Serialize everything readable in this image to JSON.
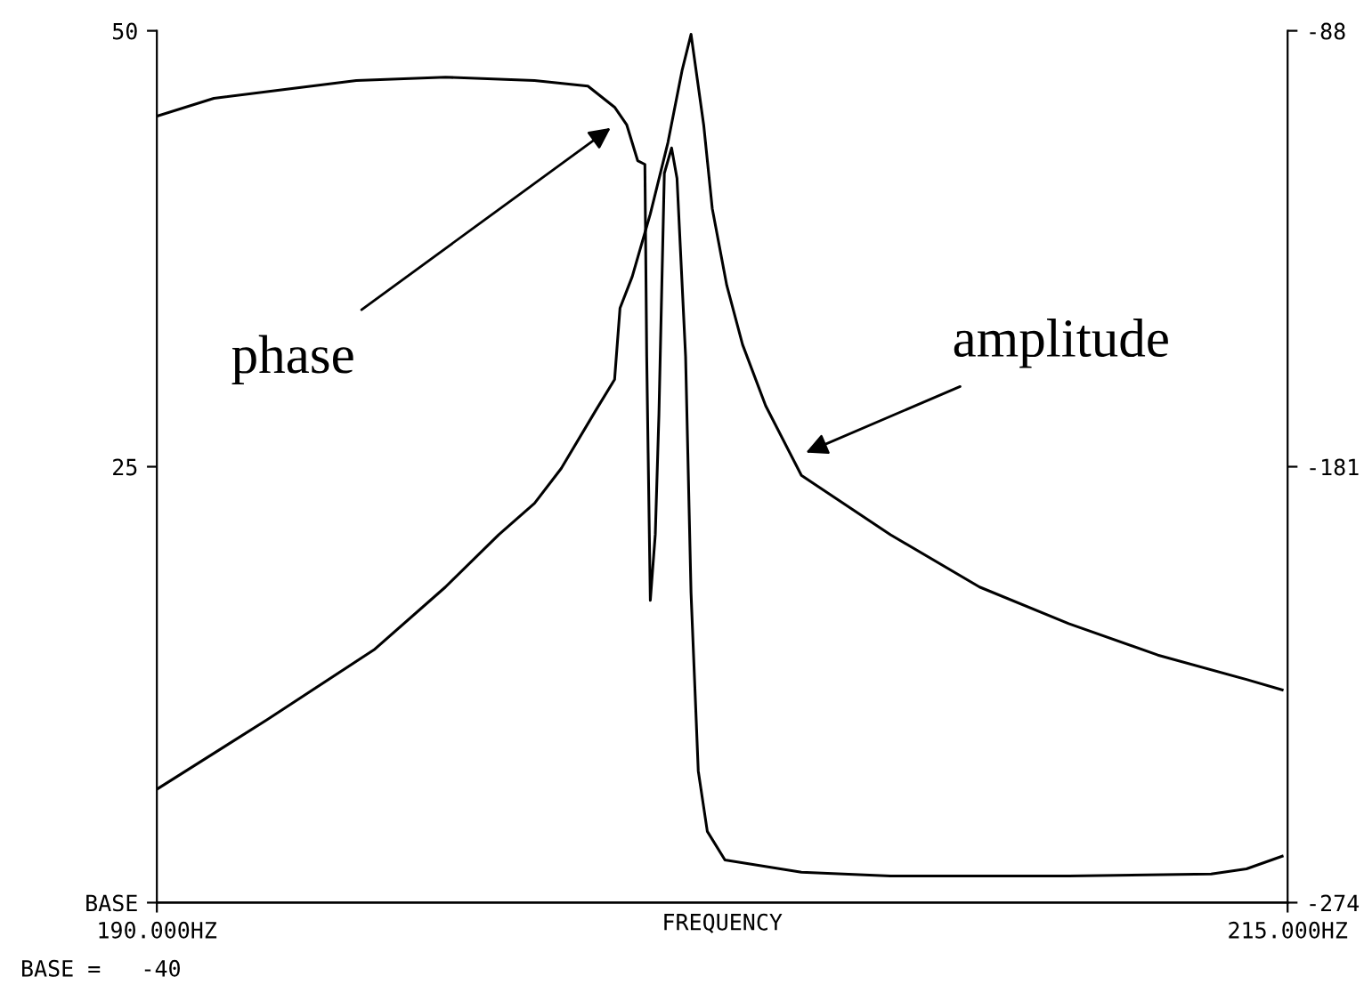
{
  "chart_data": {
    "type": "line",
    "xlabel": "FREQUENCY",
    "xlim": [
      190,
      215
    ],
    "xticks": [
      {
        "value": 190,
        "label": "190.000HZ"
      },
      {
        "value": 215,
        "label": "215.000HZ"
      }
    ],
    "ylim": [
      0,
      50
    ],
    "yticks": [
      {
        "value": 0,
        "label": "BASE"
      },
      25,
      50
    ],
    "y2lim": [
      -274,
      -88
    ],
    "y2ticks": [
      -274,
      -181,
      -88
    ],
    "grid": false,
    "legend": false,
    "marker": "none",
    "line_style": "solid",
    "series": [
      {
        "color": "#000000",
        "x": [
          190.0,
          192.44,
          194.8,
          196.38,
          197.56,
          198.35,
          198.94,
          199.72,
          200.12,
          200.24,
          200.51,
          200.91,
          201.3,
          201.61,
          201.81,
          202.09,
          202.28,
          202.6,
          202.95,
          203.46,
          204.25,
          206.22,
          208.19,
          210.16,
          212.13,
          214.09,
          214.88
        ],
        "values": [
          6.5,
          10.5,
          14.5,
          18.1,
          21.1,
          22.9,
          24.9,
          28.3,
          30.0,
          34.1,
          35.9,
          39.5,
          43.6,
          47.7,
          49.8,
          44.6,
          39.8,
          35.4,
          32.0,
          28.5,
          24.5,
          21.1,
          18.1,
          16.0,
          14.2,
          12.8,
          12.2
        ]
      },
      {
        "color": "#000000",
        "axis": "y2",
        "x": [
          190.0,
          191.26,
          192.83,
          194.41,
          196.38,
          198.35,
          199.53,
          200.12,
          200.39,
          200.63,
          200.79,
          200.83,
          200.91,
          201.02,
          201.1,
          201.22,
          201.38,
          201.5,
          201.69,
          201.81,
          201.97,
          202.17,
          202.56,
          204.25,
          206.22,
          210.16,
          213.31,
          214.09,
          214.88
        ],
        "values": [
          -106.2,
          -102.4,
          -100.5,
          -98.6,
          -97.9,
          -98.6,
          -99.8,
          -104.3,
          -108.1,
          -115.7,
          -116.5,
          -157.5,
          -209.5,
          -195.4,
          -170.0,
          -118.4,
          -113.0,
          -119.5,
          -157.5,
          -207.9,
          -245.9,
          -258.8,
          -264.9,
          -267.5,
          -268.3,
          -268.3,
          -267.9,
          -266.8,
          -264.1
        ]
      }
    ],
    "annotations": [
      {
        "text": "phase",
        "x": 200.12,
        "y": 44.6
      },
      {
        "text": "amplitude",
        "x": 204.25,
        "y": 25.7
      },
      "BASE =   -40"
    ]
  }
}
